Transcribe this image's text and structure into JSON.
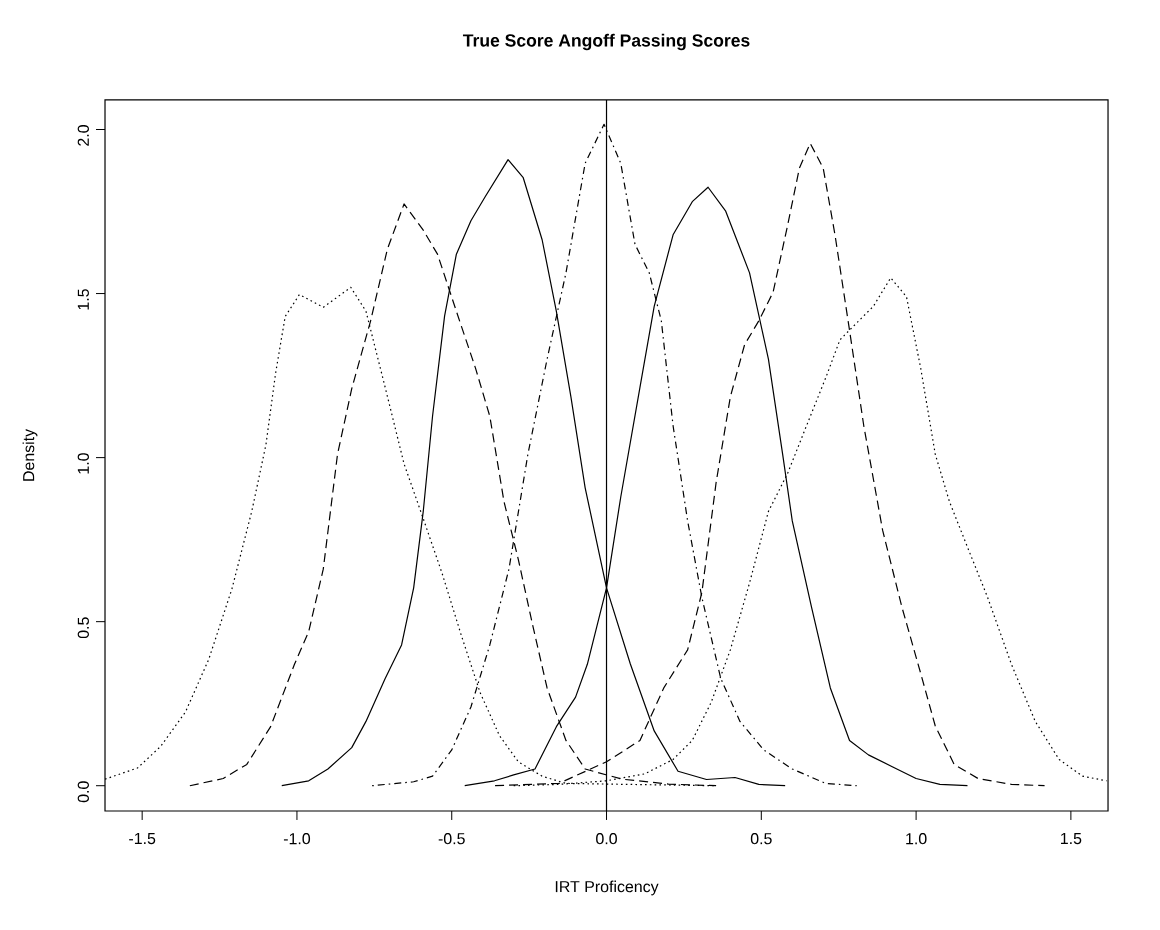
{
  "chart_data": {
    "type": "line",
    "title": "True Score Angoff Passing Scores",
    "xlabel": "IRT Proficency",
    "ylabel": "Density",
    "xlim": [
      -1.62,
      1.62
    ],
    "ylim": [
      -0.077,
      2.09
    ],
    "xticks": [
      {
        "value": -1.5,
        "label": "-1.5"
      },
      {
        "value": -1.0,
        "label": "-1.0"
      },
      {
        "value": -0.5,
        "label": "-0.5"
      },
      {
        "value": 0.0,
        "label": "0.0"
      },
      {
        "value": 0.5,
        "label": "0.5"
      },
      {
        "value": 1.0,
        "label": "1.0"
      },
      {
        "value": 1.5,
        "label": "1.5"
      }
    ],
    "yticks": [
      {
        "value": 0.0,
        "label": "0.0"
      },
      {
        "value": 0.5,
        "label": "0.5"
      },
      {
        "value": 1.0,
        "label": "1.0"
      },
      {
        "value": 1.5,
        "label": "1.5"
      },
      {
        "value": 2.0,
        "label": "2.0"
      }
    ],
    "ref_lines": [
      {
        "axis": "x",
        "value": 0,
        "color": "#000000"
      }
    ],
    "series": [
      {
        "color": "#000000",
        "line_style": "dotted",
        "x": [
          -1.62,
          -1.515,
          -1.44,
          -1.36,
          -1.285,
          -1.21,
          -1.146,
          -1.1,
          -1.069,
          -1.038,
          -0.992,
          -0.915,
          -0.826,
          -0.777,
          -0.715,
          -0.654,
          -0.592,
          -0.531,
          -0.469,
          -0.408,
          -0.346,
          -0.285,
          -0.208,
          -0.131,
          0.0,
          0.35
        ],
        "values": [
          0.02,
          0.054,
          0.12,
          0.225,
          0.385,
          0.6,
          0.836,
          1.04,
          1.257,
          1.43,
          1.497,
          1.458,
          1.519,
          1.446,
          1.214,
          0.981,
          0.814,
          0.647,
          0.458,
          0.283,
          0.153,
          0.073,
          0.029,
          0.007,
          0.005,
          0.0
        ]
      },
      {
        "color": "#000000",
        "line_style": "dashed",
        "x": [
          -1.346,
          -1.238,
          -1.162,
          -1.085,
          -1.008,
          -0.962,
          -0.915,
          -0.869,
          -0.823,
          -0.762,
          -0.708,
          -0.654,
          -0.592,
          -0.546,
          -0.485,
          -0.423,
          -0.377,
          -0.331,
          -0.285,
          -0.238,
          -0.192,
          -0.131,
          -0.069,
          0.05,
          0.2,
          0.354
        ],
        "values": [
          0.0,
          0.022,
          0.065,
          0.18,
          0.37,
          0.47,
          0.66,
          1.01,
          1.21,
          1.417,
          1.635,
          1.773,
          1.693,
          1.62,
          1.446,
          1.272,
          1.126,
          0.865,
          0.69,
          0.487,
          0.298,
          0.138,
          0.051,
          0.02,
          0.005,
          0.0
        ]
      },
      {
        "color": "#000000",
        "line_style": "solid",
        "x": [
          -1.049,
          -0.962,
          -0.9,
          -0.823,
          -0.777,
          -0.715,
          -0.662,
          -0.623,
          -0.592,
          -0.562,
          -0.523,
          -0.485,
          -0.438,
          -0.392,
          -0.318,
          -0.269,
          -0.208,
          -0.162,
          -0.115,
          -0.069,
          0.0,
          0.077,
          0.154,
          0.231,
          0.323,
          0.415,
          0.492,
          0.577
        ],
        "values": [
          0.0,
          0.015,
          0.051,
          0.116,
          0.196,
          0.327,
          0.429,
          0.603,
          0.836,
          1.126,
          1.432,
          1.62,
          1.722,
          1.795,
          1.908,
          1.853,
          1.664,
          1.446,
          1.185,
          0.908,
          0.603,
          0.371,
          0.167,
          0.044,
          0.019,
          0.025,
          0.004,
          0.0
        ]
      },
      {
        "color": "#000000",
        "line_style": "dashdot",
        "x": [
          -0.757,
          -0.623,
          -0.562,
          -0.5,
          -0.438,
          -0.377,
          -0.315,
          -0.254,
          -0.192,
          -0.131,
          -0.069,
          -0.008,
          0.046,
          0.092,
          0.138,
          0.177,
          0.215,
          0.262,
          0.308,
          0.369,
          0.431,
          0.508,
          0.6,
          0.708,
          0.808
        ],
        "values": [
          0.0,
          0.012,
          0.029,
          0.109,
          0.24,
          0.429,
          0.661,
          1.01,
          1.3,
          1.563,
          1.897,
          2.016,
          1.897,
          1.65,
          1.563,
          1.417,
          1.097,
          0.807,
          0.574,
          0.327,
          0.196,
          0.109,
          0.051,
          0.007,
          0.0
        ]
      },
      {
        "color": "#000000",
        "line_style": "solid",
        "x": [
          -0.458,
          -0.362,
          -0.3,
          -0.231,
          -0.162,
          -0.1,
          -0.062,
          0.0,
          0.046,
          0.108,
          0.154,
          0.215,
          0.277,
          0.328,
          0.385,
          0.462,
          0.523,
          0.569,
          0.6,
          0.662,
          0.723,
          0.785,
          0.846,
          0.923,
          1.0,
          1.077,
          1.166
        ],
        "values": [
          0.0,
          0.015,
          0.033,
          0.051,
          0.18,
          0.27,
          0.37,
          0.603,
          0.88,
          1.214,
          1.461,
          1.679,
          1.78,
          1.824,
          1.751,
          1.563,
          1.3,
          1.01,
          0.807,
          0.545,
          0.298,
          0.138,
          0.094,
          0.058,
          0.022,
          0.004,
          0.0
        ]
      },
      {
        "color": "#000000",
        "line_style": "dashed",
        "x": [
          -0.36,
          -0.154,
          0.0,
          0.108,
          0.185,
          0.262,
          0.308,
          0.354,
          0.4,
          0.446,
          0.492,
          0.538,
          0.585,
          0.623,
          0.658,
          0.7,
          0.738,
          0.785,
          0.831,
          0.892,
          0.954,
          1.015,
          1.062,
          1.123,
          1.2,
          1.308,
          1.415
        ],
        "values": [
          0.0,
          0.007,
          0.073,
          0.138,
          0.298,
          0.414,
          0.589,
          0.924,
          1.185,
          1.344,
          1.417,
          1.504,
          1.708,
          1.882,
          1.958,
          1.882,
          1.679,
          1.388,
          1.097,
          0.778,
          0.545,
          0.342,
          0.182,
          0.065,
          0.022,
          0.004,
          0.0
        ]
      },
      {
        "color": "#000000",
        "line_style": "dotted",
        "x": [
          -0.3,
          -0.154,
          0.0,
          0.123,
          0.215,
          0.277,
          0.338,
          0.4,
          0.462,
          0.523,
          0.585,
          0.646,
          0.708,
          0.754,
          0.815,
          0.862,
          0.918,
          0.969,
          1.015,
          1.062,
          1.108,
          1.169,
          1.231,
          1.308,
          1.385,
          1.462,
          1.538,
          1.615
        ],
        "values": [
          0.0,
          0.004,
          0.015,
          0.036,
          0.08,
          0.138,
          0.254,
          0.414,
          0.618,
          0.836,
          0.952,
          1.097,
          1.243,
          1.359,
          1.417,
          1.461,
          1.548,
          1.49,
          1.272,
          1.01,
          0.865,
          0.72,
          0.574,
          0.37,
          0.196,
          0.08,
          0.029,
          0.015
        ]
      }
    ]
  }
}
